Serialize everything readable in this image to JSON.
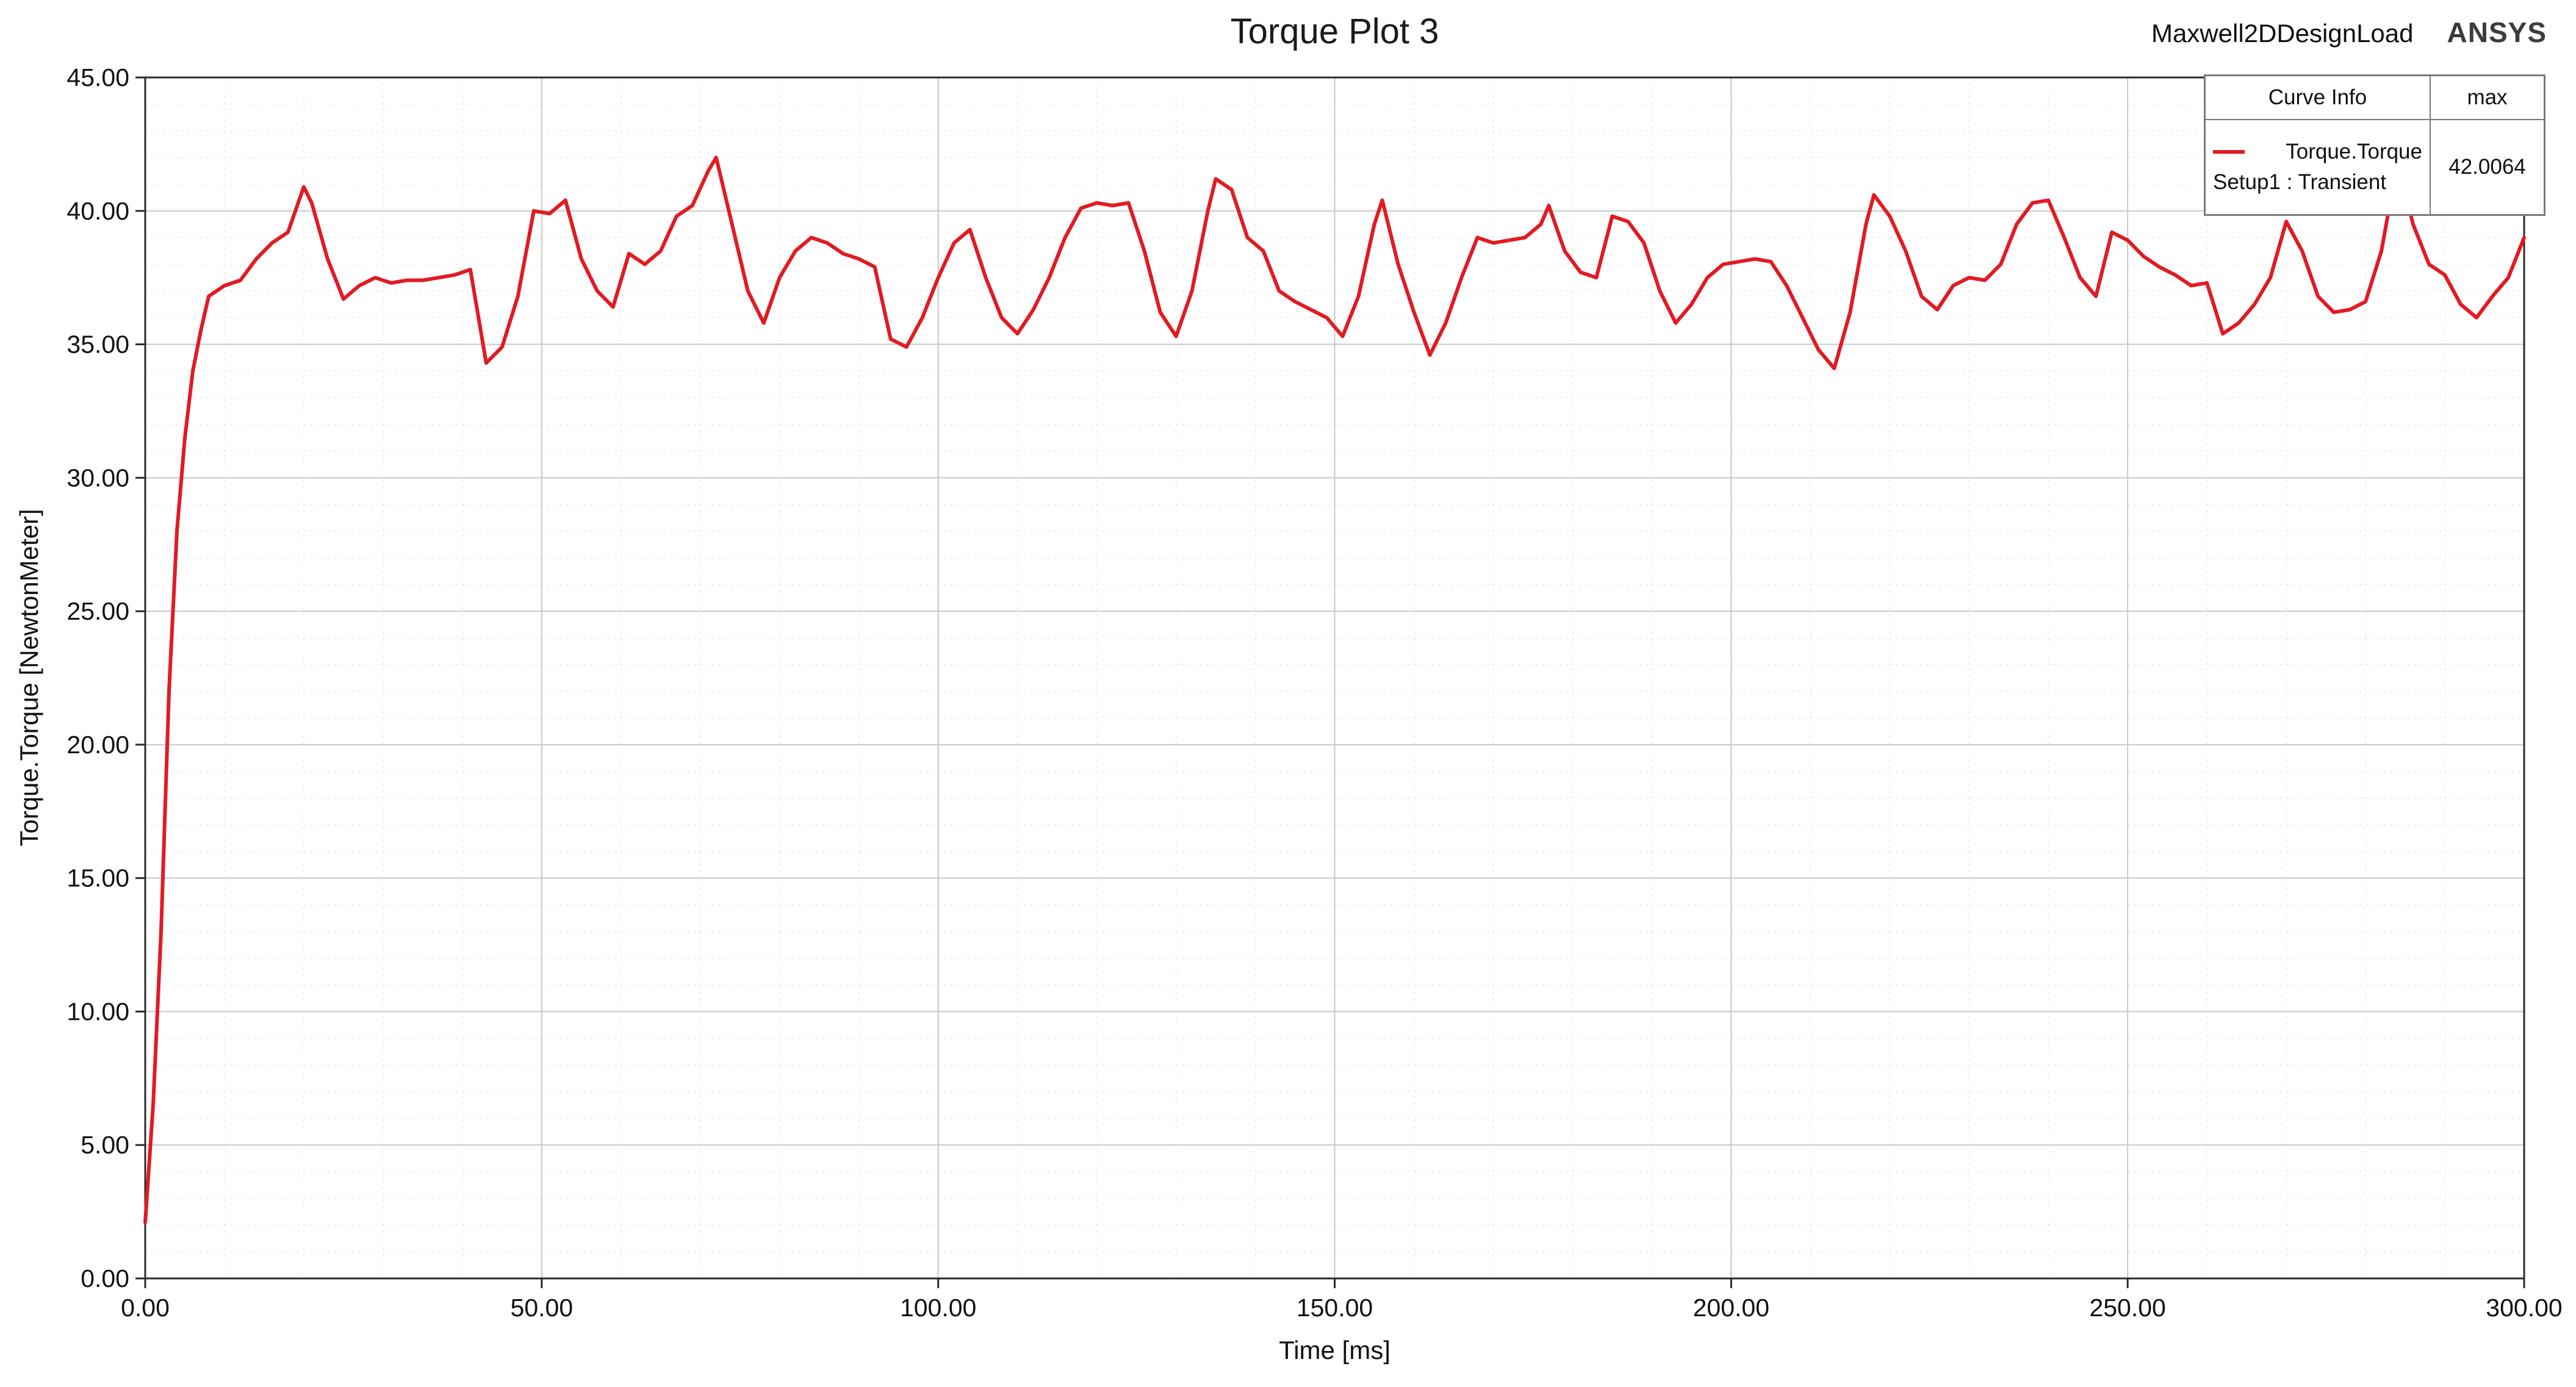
{
  "header": {
    "design_label": "Maxwell2DDesignLoad",
    "brand": "ANSYS"
  },
  "legend": {
    "col1_header": "Curve Info",
    "col2_header": "max",
    "curve_label": "Torque.Torque",
    "setup_label": "Setup1 : Transient",
    "max_value": "42.0064"
  },
  "chart_data": {
    "type": "line",
    "title": "Torque Plot 3",
    "xlabel": "Time [ms]",
    "ylabel": "Torque.Torque [NewtonMeter]",
    "xlim": [
      0,
      300
    ],
    "ylim": [
      0,
      45
    ],
    "x_ticks": [
      0,
      50,
      100,
      150,
      200,
      250,
      300
    ],
    "y_ticks": [
      0,
      5,
      10,
      15,
      20,
      25,
      30,
      35,
      40,
      45
    ],
    "x_major": 50,
    "x_minor": 10,
    "y_major": 5,
    "y_minor": 1,
    "grid": true,
    "legend_position": "top-right",
    "series": [
      {
        "name": "Torque.Torque",
        "setup": "Setup1 : Transient",
        "max": 42.0064,
        "color": "#e21a22",
        "x": [
          0,
          1,
          2,
          3,
          4,
          5,
          6,
          7,
          8,
          10,
          12,
          14,
          16,
          18,
          20,
          21,
          23,
          25,
          27,
          29,
          31,
          33,
          35,
          37,
          39,
          41,
          43,
          45,
          47,
          49,
          51,
          53,
          55,
          57,
          59,
          61,
          63,
          65,
          67,
          69,
          71,
          72,
          74,
          76,
          78,
          80,
          82,
          84,
          86,
          88,
          90,
          92,
          94,
          96,
          98,
          100,
          102,
          104,
          106,
          108,
          110,
          112,
          114,
          116,
          118,
          120,
          122,
          124,
          126,
          128,
          130,
          132,
          134,
          135,
          137,
          139,
          141,
          143,
          145,
          147,
          149,
          151,
          153,
          155,
          156,
          158,
          160,
          162,
          164,
          166,
          168,
          170,
          172,
          174,
          176,
          177,
          179,
          181,
          183,
          185,
          187,
          189,
          191,
          193,
          195,
          197,
          199,
          201,
          203,
          205,
          207,
          209,
          211,
          213,
          215,
          217,
          218,
          220,
          222,
          224,
          226,
          228,
          230,
          232,
          234,
          236,
          238,
          240,
          242,
          244,
          246,
          248,
          250,
          252,
          254,
          256,
          258,
          260,
          262,
          264,
          266,
          268,
          270,
          272,
          274,
          276,
          278,
          280,
          282,
          284,
          286,
          288,
          290,
          292,
          294,
          296,
          298,
          300
        ],
        "y": [
          2.1,
          6.5,
          13,
          22,
          28,
          31.5,
          34,
          35.5,
          36.8,
          37.2,
          37.4,
          38.2,
          38.8,
          39.2,
          40.9,
          40.3,
          38.2,
          36.7,
          37.2,
          37.5,
          37.3,
          37.4,
          37.4,
          37.5,
          37.6,
          37.8,
          34.3,
          34.9,
          36.8,
          40.0,
          39.9,
          40.4,
          38.2,
          37.0,
          36.4,
          38.4,
          38.0,
          38.5,
          39.8,
          40.2,
          41.5,
          42.0,
          39.5,
          37.0,
          35.8,
          37.5,
          38.5,
          39.0,
          38.8,
          38.4,
          38.2,
          37.9,
          35.2,
          34.9,
          36.0,
          37.5,
          38.8,
          39.3,
          37.5,
          36.0,
          35.4,
          36.3,
          37.5,
          39.0,
          40.1,
          40.3,
          40.2,
          40.3,
          38.5,
          36.2,
          35.3,
          37.0,
          40.0,
          41.2,
          40.8,
          39.0,
          38.5,
          37.0,
          36.6,
          36.3,
          36.0,
          35.3,
          36.8,
          39.5,
          40.4,
          38.0,
          36.2,
          34.6,
          35.8,
          37.5,
          39.0,
          38.8,
          38.9,
          39.0,
          39.5,
          40.2,
          38.5,
          37.7,
          37.5,
          39.8,
          39.6,
          38.8,
          37.0,
          35.8,
          36.5,
          37.5,
          38.0,
          38.1,
          38.2,
          38.1,
          37.2,
          36.0,
          34.8,
          34.1,
          36.2,
          39.5,
          40.6,
          39.8,
          38.5,
          36.8,
          36.3,
          37.2,
          37.5,
          37.4,
          38.0,
          39.5,
          40.3,
          40.4,
          39.0,
          37.5,
          36.8,
          39.2,
          38.9,
          38.3,
          37.9,
          37.6,
          37.2,
          37.3,
          35.4,
          35.8,
          36.5,
          37.5,
          39.6,
          38.5,
          36.8,
          36.2,
          36.3,
          36.6,
          38.5,
          41.8,
          39.5,
          38.0,
          37.6,
          36.5,
          36.0,
          36.8,
          37.5,
          39.0
        ]
      }
    ]
  }
}
